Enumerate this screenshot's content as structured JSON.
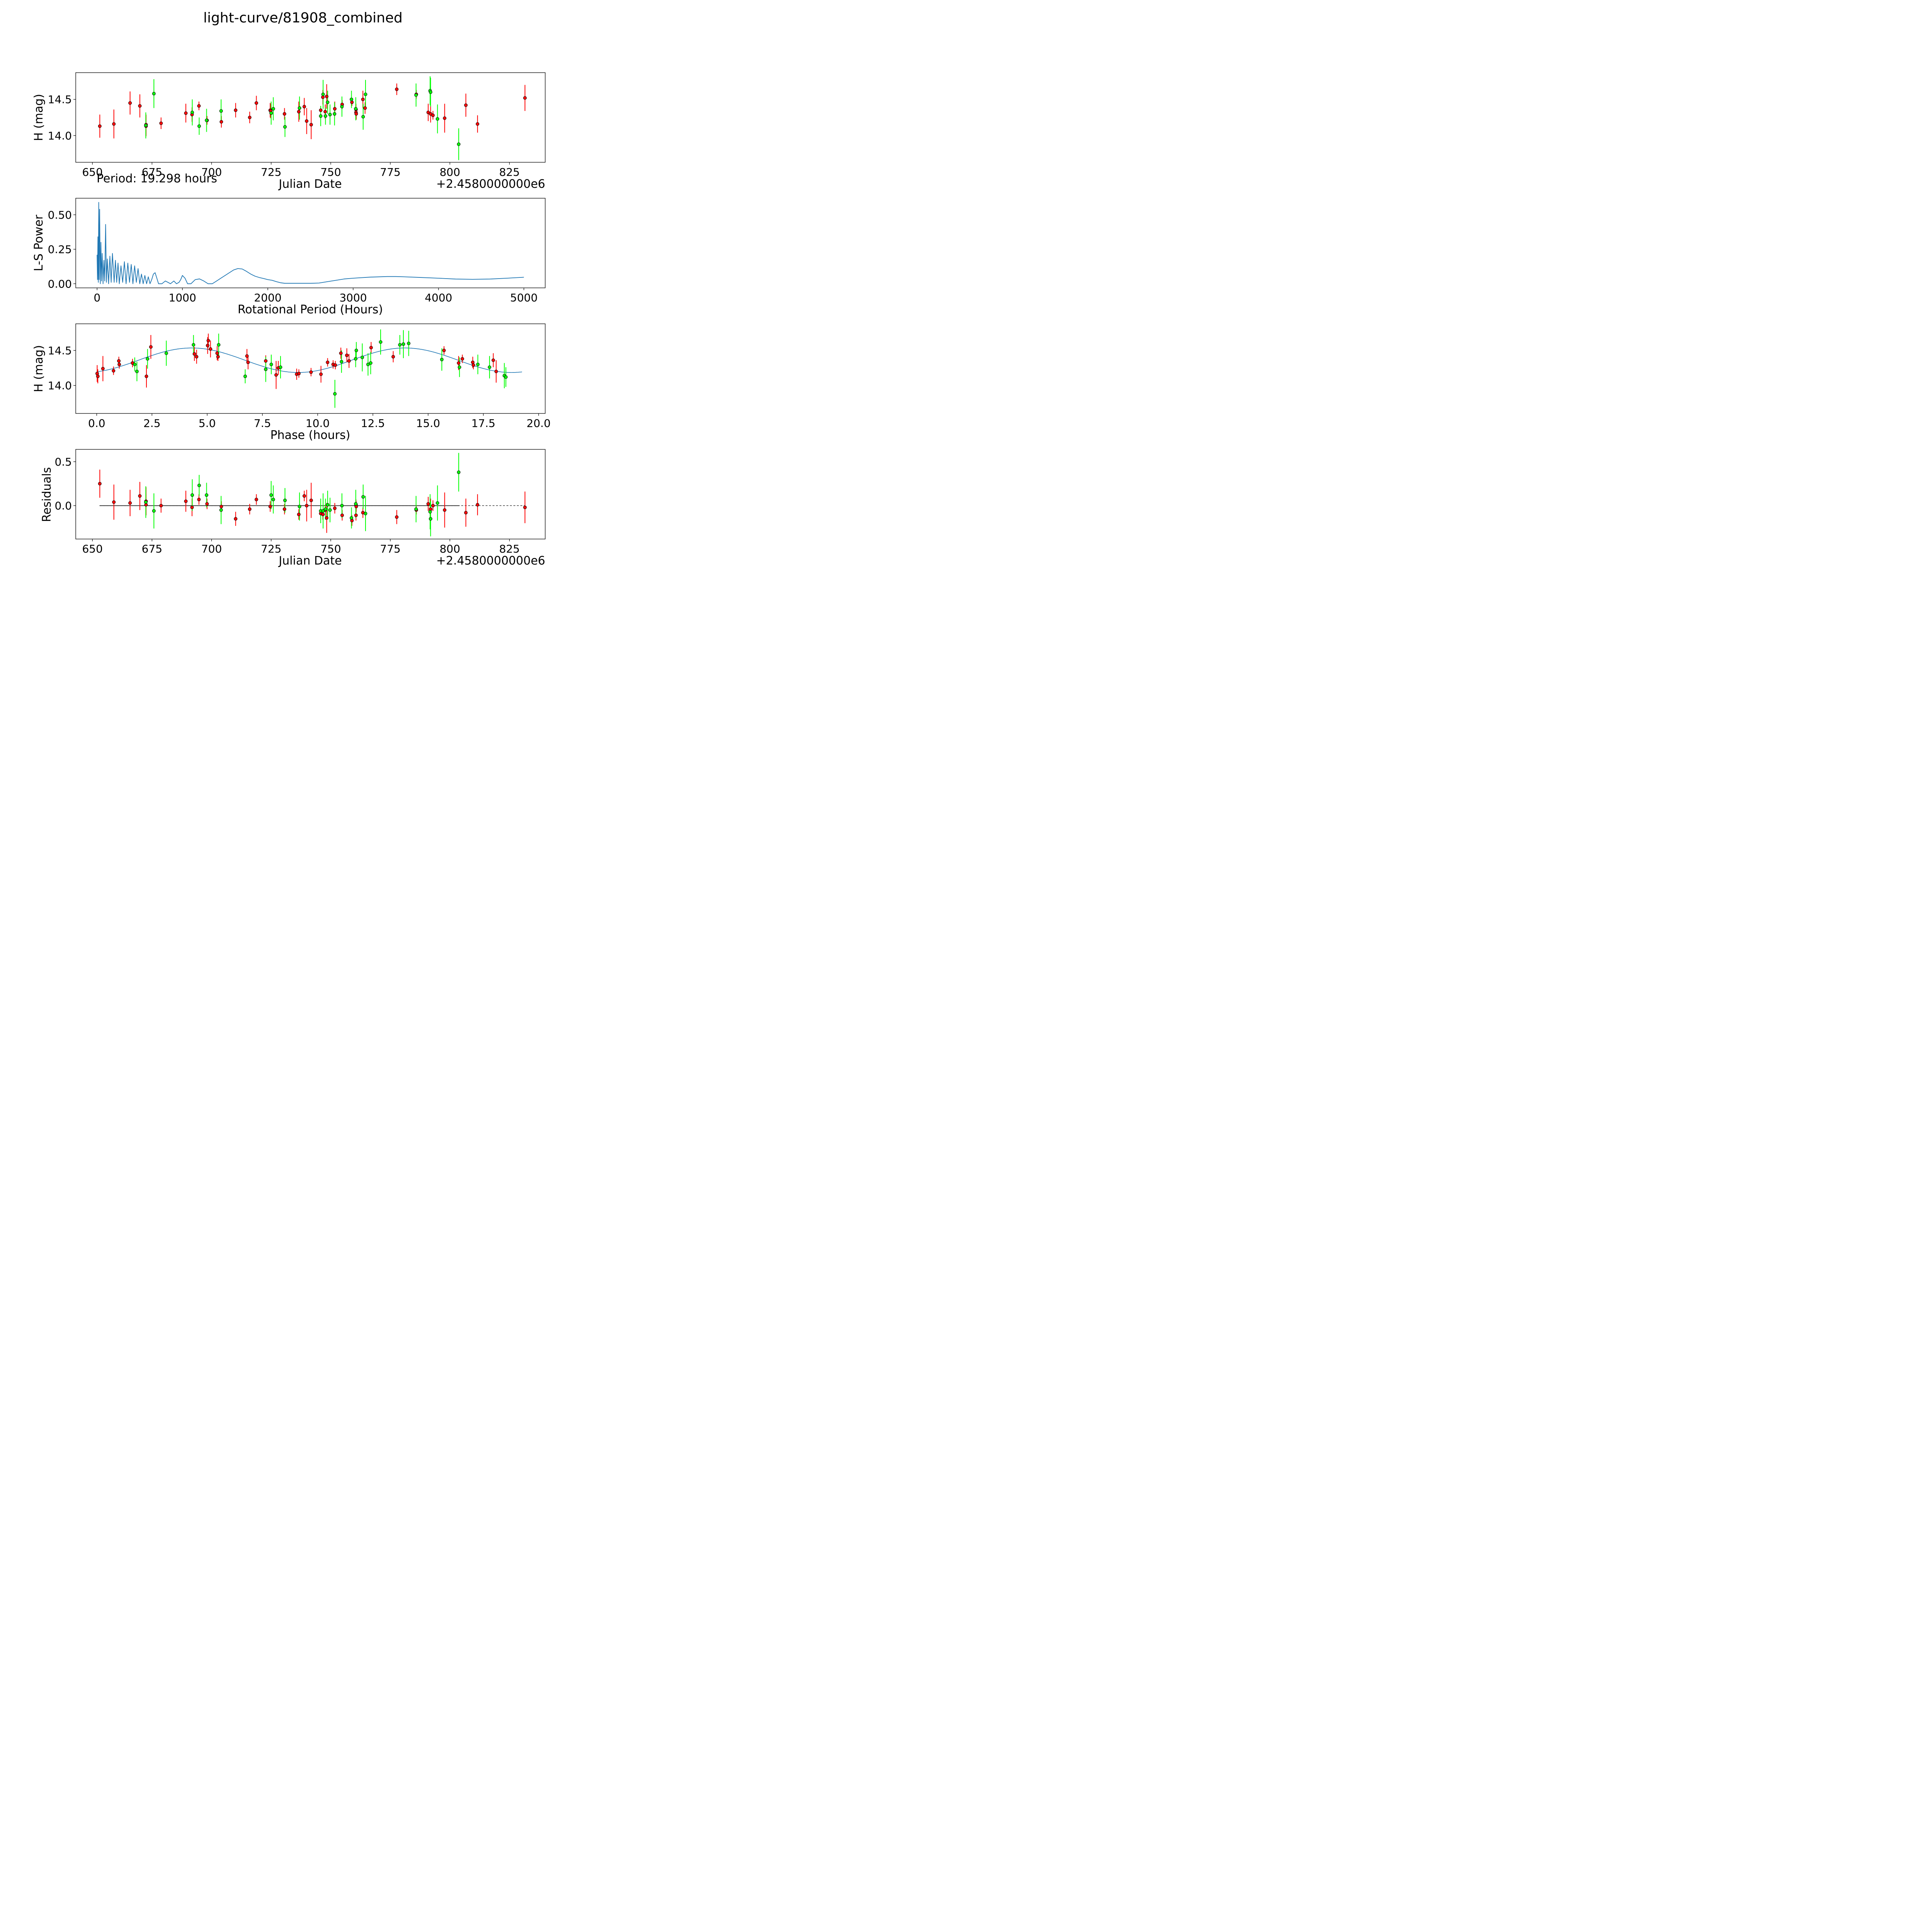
{
  "figure_title": "light-curve/81908_combined",
  "colors": {
    "red": "#ff0000",
    "green": "#00ff00",
    "line": "#1f77b4",
    "axis": "#000000"
  },
  "chart_data": [
    {
      "id": "lc",
      "type": "scatter",
      "title": "",
      "xlabel": "Julian Date",
      "ylabel": "H (mag)",
      "offset_text": "+2.4580000000e6",
      "xlim": [
        643.0,
        840.0
      ],
      "ylim": [
        13.63,
        14.87
      ],
      "xticks": [
        650,
        675,
        700,
        725,
        750,
        775,
        800,
        825
      ],
      "xticklabels": [
        "650",
        "675",
        "700",
        "725",
        "750",
        "775",
        "800",
        "825"
      ],
      "yticks": [
        14.0,
        14.5
      ],
      "yticklabels": [
        "14.0",
        "14.5"
      ],
      "annotation": "Period: 19.298 hours",
      "series": [
        {
          "name": "red",
          "x": [
            653.1,
            659.0,
            665.8,
            669.9,
            672.5,
            672.5,
            678.8,
            689.2,
            691.8,
            694.7,
            698.1,
            704.1,
            710.1,
            716.0,
            718.8,
            724.6,
            724.8,
            730.6,
            736.6,
            738.9,
            739.9,
            741.8,
            745.8,
            746.7,
            747.7,
            748.3,
            751.7,
            754.8,
            758.9,
            760.6,
            760.6,
            760.7,
            763.5,
            764.4,
            777.7,
            785.9,
            790.9,
            791.9,
            792.9,
            797.8,
            806.7,
            811.6,
            831.5
          ],
          "y": [
            14.13,
            14.16,
            14.45,
            14.41,
            14.15,
            14.13,
            14.17,
            14.31,
            14.29,
            14.41,
            14.21,
            14.19,
            14.35,
            14.25,
            14.45,
            14.35,
            14.34,
            14.3,
            14.33,
            14.4,
            14.2,
            14.15,
            14.35,
            14.53,
            14.33,
            14.54,
            14.37,
            14.43,
            14.46,
            14.32,
            14.36,
            14.3,
            14.5,
            14.38,
            14.64,
            14.57,
            14.32,
            14.3,
            14.28,
            14.24,
            14.42,
            14.16,
            14.52
          ],
          "err": [
            0.16,
            0.2,
            0.16,
            0.16,
            0.14,
            0.14,
            0.08,
            0.13,
            0.1,
            0.06,
            0.06,
            0.08,
            0.1,
            0.08,
            0.1,
            0.1,
            0.1,
            0.08,
            0.14,
            0.12,
            0.18,
            0.2,
            0.06,
            0.1,
            0.1,
            0.17,
            0.1,
            0.06,
            0.05,
            0.06,
            0.08,
            0.08,
            0.12,
            0.08,
            0.08,
            0.06,
            0.12,
            0.12,
            0.06,
            0.2,
            0.16,
            0.12,
            0.18
          ]
        },
        {
          "name": "green",
          "x": [
            672.4,
            675.8,
            691.9,
            694.8,
            697.9,
            704.0,
            725.0,
            725.9,
            730.8,
            736.9,
            745.8,
            746.8,
            747.8,
            748.7,
            749.7,
            751.6,
            754.7,
            758.7,
            760.5,
            763.6,
            764.6,
            785.8,
            791.7,
            791.9,
            794.8,
            803.7
          ],
          "y": [
            14.14,
            14.58,
            14.32,
            14.13,
            14.21,
            14.34,
            14.31,
            14.37,
            14.12,
            14.38,
            14.27,
            14.57,
            14.27,
            14.46,
            14.29,
            14.3,
            14.4,
            14.5,
            14.37,
            14.26,
            14.57,
            14.56,
            14.62,
            14.6,
            14.23,
            13.88
          ],
          "err": [
            0.18,
            0.2,
            0.18,
            0.12,
            0.16,
            0.16,
            0.16,
            0.16,
            0.14,
            0.16,
            0.14,
            0.2,
            0.12,
            0.16,
            0.14,
            0.16,
            0.14,
            0.12,
            0.16,
            0.18,
            0.2,
            0.16,
            0.2,
            0.2,
            0.2,
            0.22
          ]
        }
      ]
    },
    {
      "id": "ls",
      "type": "line",
      "title": "",
      "xlabel": "Rotational Period (Hours)",
      "ylabel": "L-S Power",
      "xlim": [
        -250,
        5250
      ],
      "ylim": [
        -0.03,
        0.62
      ],
      "xticks": [
        0,
        1000,
        2000,
        3000,
        4000,
        5000
      ],
      "xticklabels": [
        "0",
        "1000",
        "2000",
        "3000",
        "4000",
        "5000"
      ],
      "yticks": [
        0.0,
        0.25,
        0.5
      ],
      "yticklabels": [
        "0.00",
        "0.25",
        "0.50"
      ],
      "series": [
        {
          "name": "L-S power",
          "x": [
            0,
            5,
            10,
            15,
            19.3,
            24,
            30,
            38,
            45,
            52,
            60,
            70,
            80,
            90,
            100,
            110,
            120,
            135,
            150,
            165,
            180,
            200,
            215,
            230,
            245,
            260,
            280,
            300,
            320,
            340,
            360,
            380,
            400,
            420,
            440,
            460,
            480,
            500,
            520,
            540,
            560,
            580,
            600,
            620,
            640,
            660,
            680,
            700,
            720,
            740,
            760,
            780,
            800,
            830,
            860,
            880,
            900,
            930,
            960,
            980,
            1000,
            1030,
            1060,
            1100,
            1150,
            1200,
            1250,
            1300,
            1350,
            1400,
            1450,
            1500,
            1550,
            1600,
            1650,
            1700,
            1750,
            1800,
            1850,
            1900,
            1950,
            2000,
            2050,
            2100,
            2150,
            2200,
            2300,
            2400,
            2500,
            2600,
            2700,
            2800,
            2900,
            3000,
            3200,
            3400,
            3500,
            3600,
            3800,
            4000,
            4200,
            4400,
            4600,
            4800,
            5000
          ],
          "y": [
            0.21,
            0.03,
            0.34,
            0.01,
            0.59,
            0.03,
            0.54,
            0.0,
            0.3,
            0.02,
            0.22,
            0.0,
            0.17,
            0.02,
            0.43,
            0.01,
            0.18,
            0.0,
            0.2,
            0.01,
            0.22,
            0.01,
            0.17,
            0.01,
            0.15,
            0.0,
            0.13,
            0.01,
            0.16,
            0.0,
            0.15,
            0.01,
            0.14,
            0.0,
            0.13,
            0.01,
            0.11,
            0.0,
            0.07,
            0.0,
            0.06,
            0.0,
            0.05,
            0.0,
            0.03,
            0.07,
            0.08,
            0.04,
            0.0,
            0.0,
            0.0,
            0.01,
            0.02,
            0.01,
            0.0,
            0.01,
            0.02,
            0.0,
            0.01,
            0.03,
            0.06,
            0.04,
            0.0,
            0.0,
            0.03,
            0.035,
            0.02,
            0.0,
            0.0,
            0.02,
            0.04,
            0.06,
            0.08,
            0.1,
            0.11,
            0.107,
            0.09,
            0.07,
            0.055,
            0.045,
            0.038,
            0.03,
            0.025,
            0.015,
            0.007,
            0.003,
            0.003,
            0.003,
            0.003,
            0.005,
            0.015,
            0.025,
            0.035,
            0.04,
            0.048,
            0.052,
            0.052,
            0.05,
            0.045,
            0.04,
            0.034,
            0.032,
            0.034,
            0.04,
            0.047
          ]
        }
      ]
    },
    {
      "id": "phase",
      "type": "scatter",
      "title": "",
      "xlabel": "Phase (hours)",
      "ylabel": "H (mag)",
      "xlim": [
        -0.95,
        20.3
      ],
      "ylim": [
        13.6,
        14.88
      ],
      "xticks": [
        0.0,
        2.5,
        5.0,
        7.5,
        10.0,
        12.5,
        15.0,
        17.5,
        20.0
      ],
      "xticklabels": [
        "0.0",
        "2.5",
        "5.0",
        "7.5",
        "10.0",
        "12.5",
        "15.0",
        "17.5",
        "20.0"
      ],
      "yticks": [
        14.0,
        14.5
      ],
      "yticklabels": [
        "14.0",
        "14.5"
      ],
      "model": {
        "mean": 14.36,
        "amplitude": 0.175,
        "period_hours": 9.649,
        "peak_phase": 4.3
      },
      "model_xrange": [
        0.0,
        19.298
      ],
      "series": [
        {
          "name": "red",
          "x": [
            0.02,
            0.05,
            0.28,
            0.76,
            1.0,
            1.02,
            1.62,
            2.25,
            2.45,
            4.42,
            4.52,
            5.02,
            5.05,
            5.15,
            5.45,
            5.49,
            6.8,
            6.85,
            7.65,
            8.12,
            8.22,
            9.05,
            9.15,
            9.7,
            10.15,
            10.45,
            10.7,
            10.8,
            11.05,
            11.32,
            11.42,
            12.42,
            13.42,
            15.72,
            16.38,
            16.55,
            17.02,
            17.05,
            17.95,
            18.08
          ],
          "y": [
            14.17,
            14.13,
            14.24,
            14.21,
            14.35,
            14.3,
            14.32,
            14.13,
            14.55,
            14.45,
            14.41,
            14.57,
            14.64,
            14.52,
            14.46,
            14.41,
            14.42,
            14.33,
            14.35,
            14.15,
            14.25,
            14.16,
            14.17,
            14.19,
            14.16,
            14.33,
            14.3,
            14.29,
            14.46,
            14.43,
            14.35,
            14.54,
            14.41,
            14.5,
            14.32,
            14.38,
            14.33,
            14.29,
            14.36,
            14.2
          ],
          "err": [
            0.12,
            0.1,
            0.18,
            0.06,
            0.06,
            0.06,
            0.06,
            0.16,
            0.17,
            0.1,
            0.1,
            0.12,
            0.1,
            0.12,
            0.1,
            0.06,
            0.1,
            0.1,
            0.08,
            0.2,
            0.1,
            0.08,
            0.06,
            0.06,
            0.12,
            0.06,
            0.06,
            0.06,
            0.08,
            0.1,
            0.1,
            0.08,
            0.08,
            0.06,
            0.1,
            0.06,
            0.08,
            0.06,
            0.1,
            0.16
          ]
        },
        {
          "name": "green",
          "x": [
            1.72,
            1.82,
            2.3,
            3.15,
            4.38,
            5.52,
            6.72,
            7.65,
            7.9,
            8.32,
            10.78,
            11.08,
            11.72,
            11.75,
            12.02,
            12.28,
            12.4,
            12.85,
            13.72,
            13.88,
            14.12,
            15.62,
            16.42,
            17.25,
            17.78,
            18.45,
            18.52
          ],
          "y": [
            14.3,
            14.2,
            14.38,
            14.46,
            14.58,
            14.58,
            14.13,
            14.23,
            14.3,
            14.26,
            13.88,
            14.34,
            14.38,
            14.5,
            14.4,
            14.3,
            14.32,
            14.62,
            14.58,
            14.59,
            14.6,
            14.37,
            14.26,
            14.3,
            14.26,
            14.14,
            14.12
          ],
          "err": [
            0.1,
            0.14,
            0.14,
            0.18,
            0.14,
            0.16,
            0.1,
            0.18,
            0.14,
            0.16,
            0.2,
            0.16,
            0.12,
            0.12,
            0.2,
            0.16,
            0.16,
            0.18,
            0.14,
            0.2,
            0.18,
            0.16,
            0.14,
            0.14,
            0.16,
            0.18,
            0.14
          ]
        }
      ]
    },
    {
      "id": "resid",
      "type": "scatter",
      "title": "",
      "xlabel": "Julian Date",
      "ylabel": "Residuals",
      "offset_text": "+2.4580000000e6",
      "xlim": [
        643.0,
        840.0
      ],
      "ylim": [
        -0.38,
        0.64
      ],
      "xticks": [
        650,
        675,
        700,
        725,
        750,
        775,
        800,
        825
      ],
      "xticklabels": [
        "650",
        "675",
        "700",
        "725",
        "750",
        "775",
        "800",
        "825"
      ],
      "yticks": [
        0.0,
        0.5
      ],
      "yticklabels": [
        "0.0",
        "0.5"
      ],
      "zero_line": {
        "solid_x": [
          653.0,
          804.0
        ],
        "dashed_x": [
          653.0,
          831.5
        ],
        "y": 0.0
      },
      "series": [
        {
          "name": "red",
          "x": [
            653.1,
            659.0,
            665.8,
            669.9,
            672.5,
            672.5,
            678.8,
            689.2,
            691.8,
            694.7,
            698.1,
            704.1,
            710.1,
            716.0,
            718.8,
            724.6,
            730.6,
            736.6,
            738.9,
            739.9,
            741.8,
            745.8,
            746.7,
            747.7,
            748.3,
            751.7,
            754.8,
            758.9,
            760.6,
            760.6,
            760.7,
            763.5,
            777.7,
            785.9,
            790.9,
            791.9,
            792.9,
            797.8,
            806.7,
            811.6,
            831.5
          ],
          "y": [
            0.25,
            0.04,
            0.03,
            0.11,
            0.05,
            0.01,
            0.0,
            0.05,
            -0.02,
            0.07,
            0.02,
            -0.01,
            -0.15,
            -0.04,
            0.07,
            -0.01,
            -0.04,
            -0.1,
            0.11,
            0.0,
            0.06,
            -0.09,
            -0.1,
            -0.05,
            -0.14,
            -0.03,
            -0.11,
            -0.17,
            -0.11,
            0.01,
            -0.01,
            -0.08,
            -0.13,
            -0.05,
            0.02,
            -0.04,
            0.0,
            -0.05,
            -0.08,
            0.01,
            -0.02
          ],
          "err": [
            0.16,
            0.2,
            0.15,
            0.16,
            0.16,
            0.12,
            0.08,
            0.12,
            0.1,
            0.06,
            0.06,
            0.06,
            0.08,
            0.06,
            0.06,
            0.06,
            0.06,
            0.06,
            0.06,
            0.18,
            0.2,
            0.06,
            0.06,
            0.06,
            0.17,
            0.06,
            0.06,
            0.06,
            0.06,
            0.06,
            0.06,
            0.06,
            0.08,
            0.05,
            0.08,
            0.12,
            0.06,
            0.2,
            0.16,
            0.12,
            0.18
          ]
        },
        {
          "name": "green",
          "x": [
            672.4,
            675.8,
            691.9,
            694.8,
            697.9,
            704.0,
            725.0,
            725.9,
            730.8,
            736.9,
            745.8,
            746.8,
            747.8,
            748.7,
            749.7,
            754.7,
            758.7,
            760.5,
            763.6,
            764.6,
            785.8,
            791.7,
            791.9,
            794.8,
            803.7
          ],
          "y": [
            0.04,
            -0.06,
            0.12,
            0.23,
            0.12,
            -0.05,
            0.12,
            0.07,
            0.06,
            -0.01,
            -0.06,
            -0.06,
            -0.04,
            0.01,
            -0.05,
            0.0,
            -0.14,
            0.02,
            0.1,
            -0.09,
            -0.04,
            -0.07,
            -0.15,
            0.03,
            0.38
          ],
          "err": [
            0.18,
            0.2,
            0.18,
            0.12,
            0.14,
            0.16,
            0.16,
            0.16,
            0.14,
            0.16,
            0.14,
            0.2,
            0.12,
            0.16,
            0.14,
            0.14,
            0.12,
            0.16,
            0.14,
            0.2,
            0.15,
            0.2,
            0.2,
            0.2,
            0.22
          ]
        }
      ]
    }
  ]
}
